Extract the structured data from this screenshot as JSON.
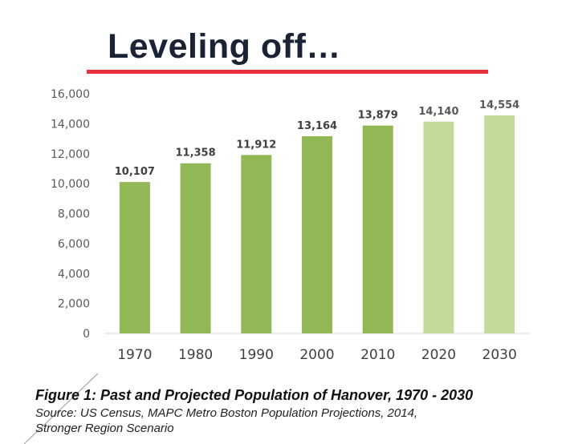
{
  "slide": {
    "title": "Leveling off…"
  },
  "caption": {
    "title": "Figure 1: Past and Projected Population of Hanover, 1970 - 2030",
    "source_line1": "Source: US Census, MAPC Metro Boston Population Projections, 2014,",
    "source_line2": "Stronger Region Scenario"
  },
  "colors": {
    "accent_underline": "#e8313a",
    "bar_historical": "#92b856",
    "bar_projected": "#c4d99c"
  },
  "chart_data": {
    "type": "bar",
    "categories": [
      "1970",
      "1980",
      "1990",
      "2000",
      "2010",
      "2020",
      "2030"
    ],
    "values": [
      10107,
      11358,
      11912,
      13164,
      13879,
      14140,
      14554
    ],
    "value_labels": [
      "10,107",
      "11,358",
      "11,912",
      "13,164",
      "13,879",
      "14,140",
      "14,554"
    ],
    "projected": [
      false,
      false,
      false,
      false,
      false,
      true,
      true
    ],
    "ylim": [
      0,
      16000
    ],
    "yticks": [
      0,
      2000,
      4000,
      6000,
      8000,
      10000,
      12000,
      14000,
      16000
    ],
    "ytick_labels": [
      "0",
      "2,000",
      "4,000",
      "6,000",
      "8,000",
      "10,000",
      "12,000",
      "14,000",
      "16,000"
    ],
    "grid": false,
    "legend": "none"
  }
}
